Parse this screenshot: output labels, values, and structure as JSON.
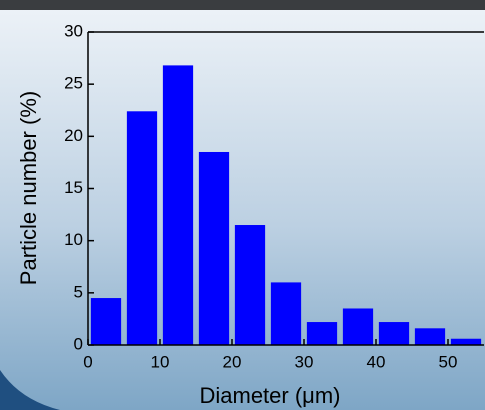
{
  "chart_data": {
    "type": "histogram",
    "x_label": "Diameter (μm)",
    "y_label": "Particle number (%)",
    "bins": [
      0,
      5,
      10,
      15,
      20,
      25,
      30,
      35,
      40,
      45,
      50,
      55
    ],
    "values": [
      4.5,
      22.4,
      26.8,
      18.5,
      11.5,
      6.0,
      2.2,
      3.5,
      2.2,
      1.6,
      0.6
    ],
    "color": "#0000ff",
    "xlim": [
      0,
      55
    ],
    "xticks": [
      0,
      10,
      20,
      30,
      40,
      50
    ],
    "ylim": [
      0,
      30
    ],
    "yticks": [
      0,
      5,
      10,
      15,
      20,
      25,
      30
    ]
  }
}
